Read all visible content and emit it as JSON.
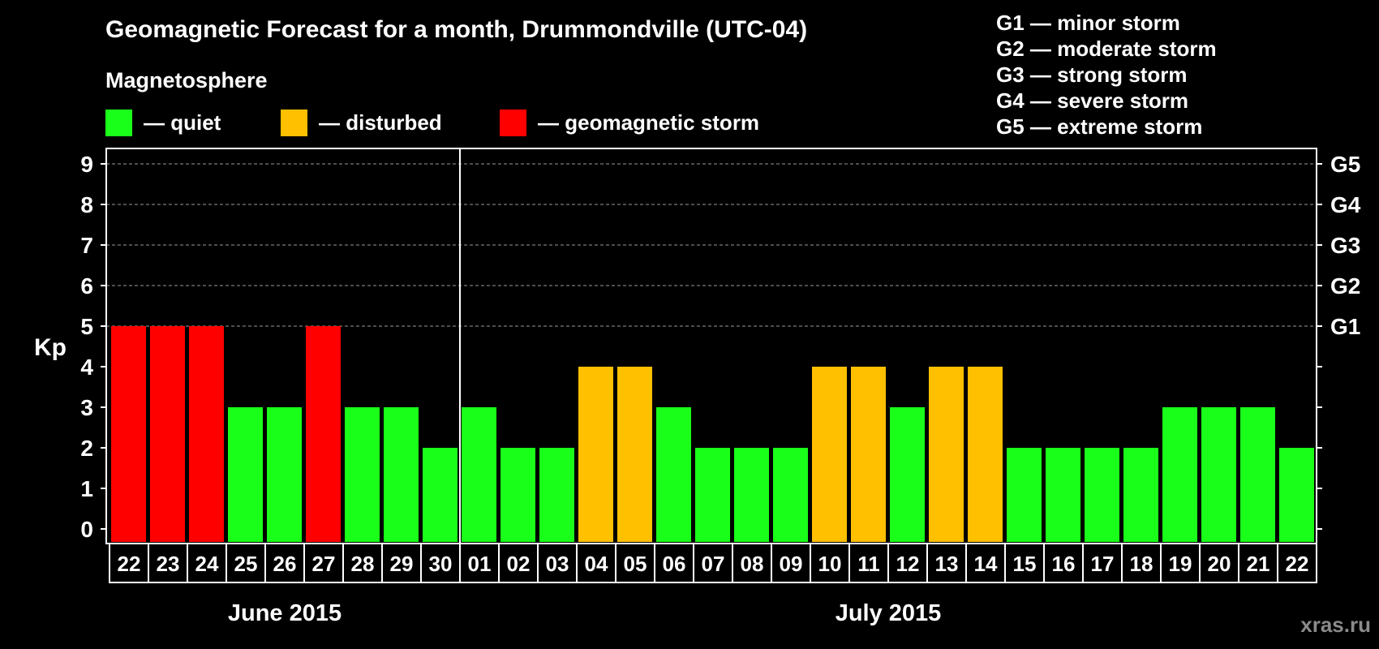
{
  "title": "Geomagnetic Forecast for a month, Drummondville (UTC-04)",
  "legend": {
    "heading": "Magnetosphere",
    "items": [
      {
        "label": "— quiet",
        "color": "#1aff1a"
      },
      {
        "label": "— disturbed",
        "color": "#ffc000"
      },
      {
        "label": "— geomagnetic storm",
        "color": "#ff0000"
      }
    ]
  },
  "g_scale": [
    "G1 — minor storm",
    "G2 — moderate storm",
    "G3 — strong storm",
    "G4 — severe storm",
    "G5 — extreme storm"
  ],
  "watermark": "xras.ru",
  "chart_data": {
    "type": "bar",
    "ylabel": "Kp",
    "ylim": [
      0,
      9
    ],
    "yticks": [
      "0",
      "1",
      "2",
      "3",
      "4",
      "5",
      "6",
      "7",
      "8",
      "9"
    ],
    "right_axis_labels": [
      {
        "kp": 5,
        "label": "G1"
      },
      {
        "kp": 6,
        "label": "G2"
      },
      {
        "kp": 7,
        "label": "G3"
      },
      {
        "kp": 8,
        "label": "G4"
      },
      {
        "kp": 9,
        "label": "G5"
      }
    ],
    "categories": [
      "22",
      "23",
      "24",
      "25",
      "26",
      "27",
      "28",
      "29",
      "30",
      "01",
      "02",
      "03",
      "04",
      "05",
      "06",
      "07",
      "08",
      "09",
      "10",
      "11",
      "12",
      "13",
      "14",
      "15",
      "16",
      "17",
      "18",
      "19",
      "20",
      "21",
      "22"
    ],
    "values": [
      5,
      5,
      5,
      3,
      3,
      5,
      3,
      3,
      2,
      3,
      2,
      2,
      4,
      4,
      3,
      2,
      2,
      2,
      4,
      4,
      3,
      4,
      4,
      2,
      2,
      2,
      2,
      3,
      3,
      3,
      2
    ],
    "months": [
      {
        "label": "June 2015",
        "start_index": 0,
        "end_index": 8
      },
      {
        "label": "July 2015",
        "start_index": 9,
        "end_index": 30
      }
    ],
    "colors": {
      "quiet": "#1aff1a",
      "disturbed": "#ffc000",
      "storm": "#ff0000"
    }
  }
}
